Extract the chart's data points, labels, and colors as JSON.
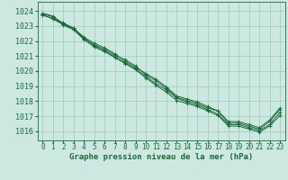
{
  "bg_color": "#cce8e0",
  "grid_color": "#99ccbb",
  "line_color": "#1a6b3a",
  "marker_color": "#1a6b3a",
  "xlabel": "Graphe pression niveau de la mer (hPa)",
  "xlabel_fontsize": 6.5,
  "tick_fontsize": 5.5,
  "ytick_fontsize": 6.0,
  "xlim": [
    -0.5,
    23.5
  ],
  "ylim": [
    1015.4,
    1024.6
  ],
  "xticks": [
    0,
    1,
    2,
    3,
    4,
    5,
    6,
    7,
    8,
    9,
    10,
    11,
    12,
    13,
    14,
    15,
    16,
    17,
    18,
    19,
    20,
    21,
    22,
    23
  ],
  "yticks": [
    1016,
    1017,
    1018,
    1019,
    1020,
    1021,
    1022,
    1023,
    1024
  ],
  "lines": [
    [
      1023.7,
      1023.5,
      1023.2,
      1022.85,
      1022.2,
      1021.7,
      1021.35,
      1020.95,
      1020.55,
      1020.15,
      1019.65,
      1019.15,
      1018.75,
      1018.2,
      1017.95,
      1017.75,
      1017.45,
      1017.15,
      1016.45,
      1016.45,
      1016.25,
      1016.05,
      1016.45,
      1017.25
    ],
    [
      1023.75,
      1023.45,
      1023.1,
      1022.8,
      1022.15,
      1021.75,
      1021.45,
      1021.05,
      1020.75,
      1020.35,
      1019.75,
      1019.35,
      1018.85,
      1018.25,
      1018.05,
      1017.85,
      1017.55,
      1017.35,
      1016.55,
      1016.55,
      1016.35,
      1016.15,
      1016.65,
      1017.45
    ],
    [
      1023.8,
      1023.6,
      1023.05,
      1022.75,
      1022.1,
      1021.6,
      1021.3,
      1020.9,
      1020.5,
      1020.1,
      1019.55,
      1019.05,
      1018.6,
      1018.05,
      1017.85,
      1017.65,
      1017.35,
      1017.05,
      1016.35,
      1016.35,
      1016.15,
      1015.95,
      1016.35,
      1017.05
    ],
    [
      1023.85,
      1023.65,
      1023.15,
      1022.85,
      1022.25,
      1021.85,
      1021.55,
      1021.15,
      1020.65,
      1020.25,
      1019.85,
      1019.45,
      1018.95,
      1018.35,
      1018.15,
      1017.95,
      1017.65,
      1017.35,
      1016.65,
      1016.65,
      1016.45,
      1016.25,
      1016.75,
      1017.55
    ]
  ]
}
